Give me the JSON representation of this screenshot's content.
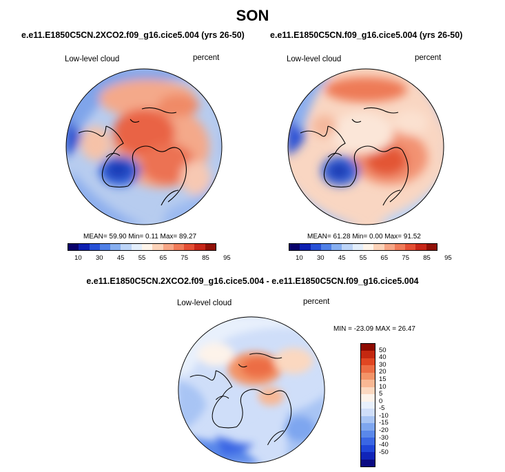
{
  "title": "SON",
  "panels": [
    {
      "case": "e.e11.E1850C5CN.2XCO2.f09_g16.cice5.004 (yrs 26-50)",
      "variable": "Low-level cloud",
      "units": "percent",
      "stats": "MEAN=  59.90  Min=   0.11  Max=  89.27"
    },
    {
      "case": "e.e11.E1850C5CN.f09_g16.cice5.004 (yrs 26-50)",
      "variable": "Low-level cloud",
      "units": "percent",
      "stats": "MEAN=  61.28  Min=   0.00  Max=  91.52"
    }
  ],
  "diff": {
    "case": "e.e11.E1850C5CN.2XCO2.f09_g16.cice5.004 - e.e11.E1850C5CN.f09_g16.cice5.004",
    "variable": "Low-level cloud",
    "units": "percent",
    "stats": "MIN = -23.09 MAX =  26.47"
  },
  "abs_colorbar": {
    "colors": [
      "#08006a",
      "#0d1fb0",
      "#2750d6",
      "#4f7fe6",
      "#86aef0",
      "#bcd4f7",
      "#e3eefb",
      "#fdf4ea",
      "#fbd2b8",
      "#f6a585",
      "#f07a58",
      "#e44e33",
      "#c72618",
      "#901006"
    ],
    "ticks": [
      "10",
      "30",
      "45",
      "55",
      "65",
      "75",
      "85",
      "95"
    ]
  },
  "diff_colorbar": {
    "colors": [
      "#0a0a82",
      "#1024b8",
      "#2046d8",
      "#3a66e4",
      "#5a88ea",
      "#7ea6ef",
      "#a8c4f4",
      "#cfdef9",
      "#e8f0fc",
      "#fdf3ea",
      "#fbd8c0",
      "#f8b894",
      "#f39468",
      "#ec6d44",
      "#e04622",
      "#c42810",
      "#8e0b00"
    ],
    "ticks": [
      "50",
      "40",
      "30",
      "20",
      "15",
      "10",
      "5",
      "0",
      "-5",
      "-10",
      "-15",
      "-20",
      "-30",
      "-40",
      "-50"
    ]
  }
}
